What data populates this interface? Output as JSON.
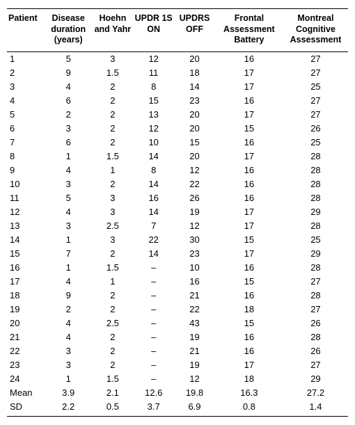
{
  "table": {
    "columns": [
      "Patient",
      "Disease duration (years)",
      "Hoehn and Yahr",
      "UPDR 1S ON",
      "UPDRS OFF",
      "Frontal Assessment Battery",
      "Montreal Cognitive Assessment"
    ],
    "rows": [
      [
        "1",
        "5",
        "3",
        "12",
        "20",
        "16",
        "27"
      ],
      [
        "2",
        "9",
        "1.5",
        "11",
        "18",
        "17",
        "27"
      ],
      [
        "3",
        "4",
        "2",
        "8",
        "14",
        "17",
        "25"
      ],
      [
        "4",
        "6",
        "2",
        "15",
        "23",
        "16",
        "27"
      ],
      [
        "5",
        "2",
        "2",
        "13",
        "20",
        "17",
        "27"
      ],
      [
        "6",
        "3",
        "2",
        "12",
        "20",
        "15",
        "26"
      ],
      [
        "7",
        "6",
        "2",
        "10",
        "15",
        "16",
        "25"
      ],
      [
        "8",
        "1",
        "1.5",
        "14",
        "20",
        "17",
        "28"
      ],
      [
        "9",
        "4",
        "1",
        "8",
        "12",
        "16",
        "28"
      ],
      [
        "10",
        "3",
        "2",
        "14",
        "22",
        "16",
        "28"
      ],
      [
        "11",
        "5",
        "3",
        "16",
        "26",
        "16",
        "28"
      ],
      [
        "12",
        "4",
        "3",
        "14",
        "19",
        "17",
        "29"
      ],
      [
        "13",
        "3",
        "2.5",
        "7",
        "12",
        "17",
        "28"
      ],
      [
        "14",
        "1",
        "3",
        "22",
        "30",
        "15",
        "25"
      ],
      [
        "15",
        "7",
        "2",
        "14",
        "23",
        "17",
        "29"
      ],
      [
        "16",
        "1",
        "1.5",
        "–",
        "10",
        "16",
        "28"
      ],
      [
        "17",
        "4",
        "1",
        "–",
        "16",
        "15",
        "27"
      ],
      [
        "18",
        "9",
        "2",
        "–",
        "21",
        "16",
        "28"
      ],
      [
        "19",
        "2",
        "2",
        "–",
        "22",
        "18",
        "27"
      ],
      [
        "20",
        "4",
        "2.5",
        "–",
        "43",
        "15",
        "26"
      ],
      [
        "21",
        "4",
        "2",
        "–",
        "19",
        "16",
        "28"
      ],
      [
        "22",
        "3",
        "2",
        "–",
        "21",
        "16",
        "26"
      ],
      [
        "23",
        "3",
        "2",
        "–",
        "19",
        "17",
        "27"
      ],
      [
        "24",
        "1",
        "1.5",
        "–",
        "12",
        "18",
        "29"
      ],
      [
        "Mean",
        "3.9",
        "2.1",
        "12.6",
        "19.8",
        "16.3",
        "27.2"
      ],
      [
        "SD",
        "2.2",
        "0.5",
        "3.7",
        "6.9",
        "0.8",
        "1.4"
      ]
    ]
  }
}
